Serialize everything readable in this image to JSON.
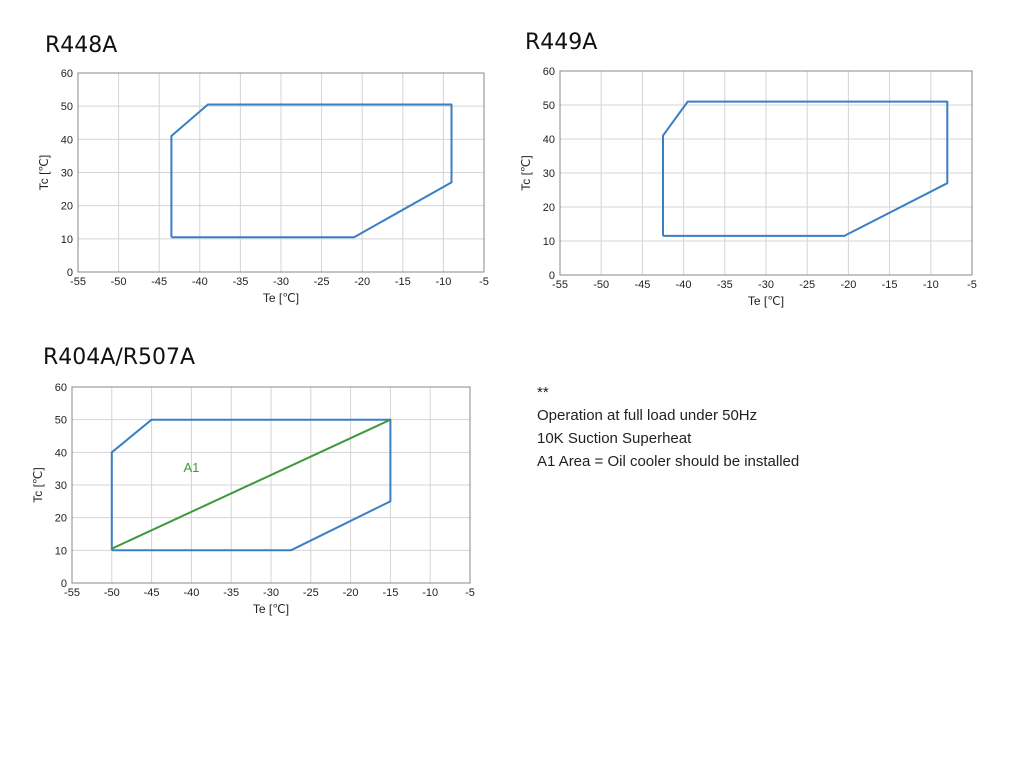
{
  "chart_data": [
    {
      "id": "r448a",
      "type": "line",
      "title": "R448A",
      "xlabel": "Te [℃]",
      "ylabel": "Tc [℃]",
      "xlim": [
        -55,
        -5
      ],
      "ylim": [
        0,
        60
      ],
      "xticks": [
        -55,
        -50,
        -45,
        -40,
        -35,
        -30,
        -25,
        -20,
        -15,
        -10,
        -5
      ],
      "yticks": [
        0,
        10,
        20,
        30,
        40,
        50,
        60
      ],
      "grid": true,
      "series": [
        {
          "color": "#3a7fc4",
          "points": [
            [
              -43.5,
              10.5
            ],
            [
              -21,
              10.5
            ],
            [
              -9,
              27
            ],
            [
              -9,
              50.5
            ],
            [
              -39,
              50.5
            ],
            [
              -43.5,
              41
            ],
            [
              -43.5,
              10.5
            ]
          ]
        }
      ],
      "annotations": []
    },
    {
      "id": "r449a",
      "type": "line",
      "title": "R449A",
      "xlabel": "Te [℃]",
      "ylabel": "Tc [℃]",
      "xlim": [
        -55,
        -5
      ],
      "ylim": [
        0,
        60
      ],
      "xticks": [
        -55,
        -50,
        -45,
        -40,
        -35,
        -30,
        -25,
        -20,
        -15,
        -10,
        -5
      ],
      "yticks": [
        0,
        10,
        20,
        30,
        40,
        50,
        60
      ],
      "grid": true,
      "series": [
        {
          "color": "#3a7fc4",
          "points": [
            [
              -42.5,
              11.5
            ],
            [
              -20.5,
              11.5
            ],
            [
              -8,
              27
            ],
            [
              -8,
              51
            ],
            [
              -39.5,
              51
            ],
            [
              -42.5,
              41
            ],
            [
              -42.5,
              11.5
            ]
          ]
        }
      ],
      "annotations": []
    },
    {
      "id": "r404a",
      "type": "line",
      "title": "R404A/R507A",
      "xlabel": "Te [℃]",
      "ylabel": "Tc [℃]",
      "xlim": [
        -55,
        -5
      ],
      "ylim": [
        0,
        60
      ],
      "xticks": [
        -55,
        -50,
        -45,
        -40,
        -35,
        -30,
        -25,
        -20,
        -15,
        -10,
        -5
      ],
      "yticks": [
        0,
        10,
        20,
        30,
        40,
        50,
        60
      ],
      "grid": true,
      "series": [
        {
          "color": "#3a7fc4",
          "points": [
            [
              -50,
              10
            ],
            [
              -27.5,
              10
            ],
            [
              -15,
              25
            ],
            [
              -15,
              50
            ],
            [
              -45,
              50
            ],
            [
              -50,
              40
            ],
            [
              -50,
              10
            ]
          ]
        },
        {
          "color": "#3c9a3c",
          "points": [
            [
              -50,
              10.5
            ],
            [
              -15,
              50
            ]
          ]
        }
      ],
      "annotations": [
        {
          "text": "A1",
          "x": -40,
          "y": 34,
          "color": "#3c9a3c"
        }
      ]
    }
  ],
  "notes": {
    "marker": "**",
    "line1": "Operation at full load under 50Hz",
    "line2": "10K Suction Superheat",
    "line3": "A1 Area = Oil cooler should be installed"
  }
}
